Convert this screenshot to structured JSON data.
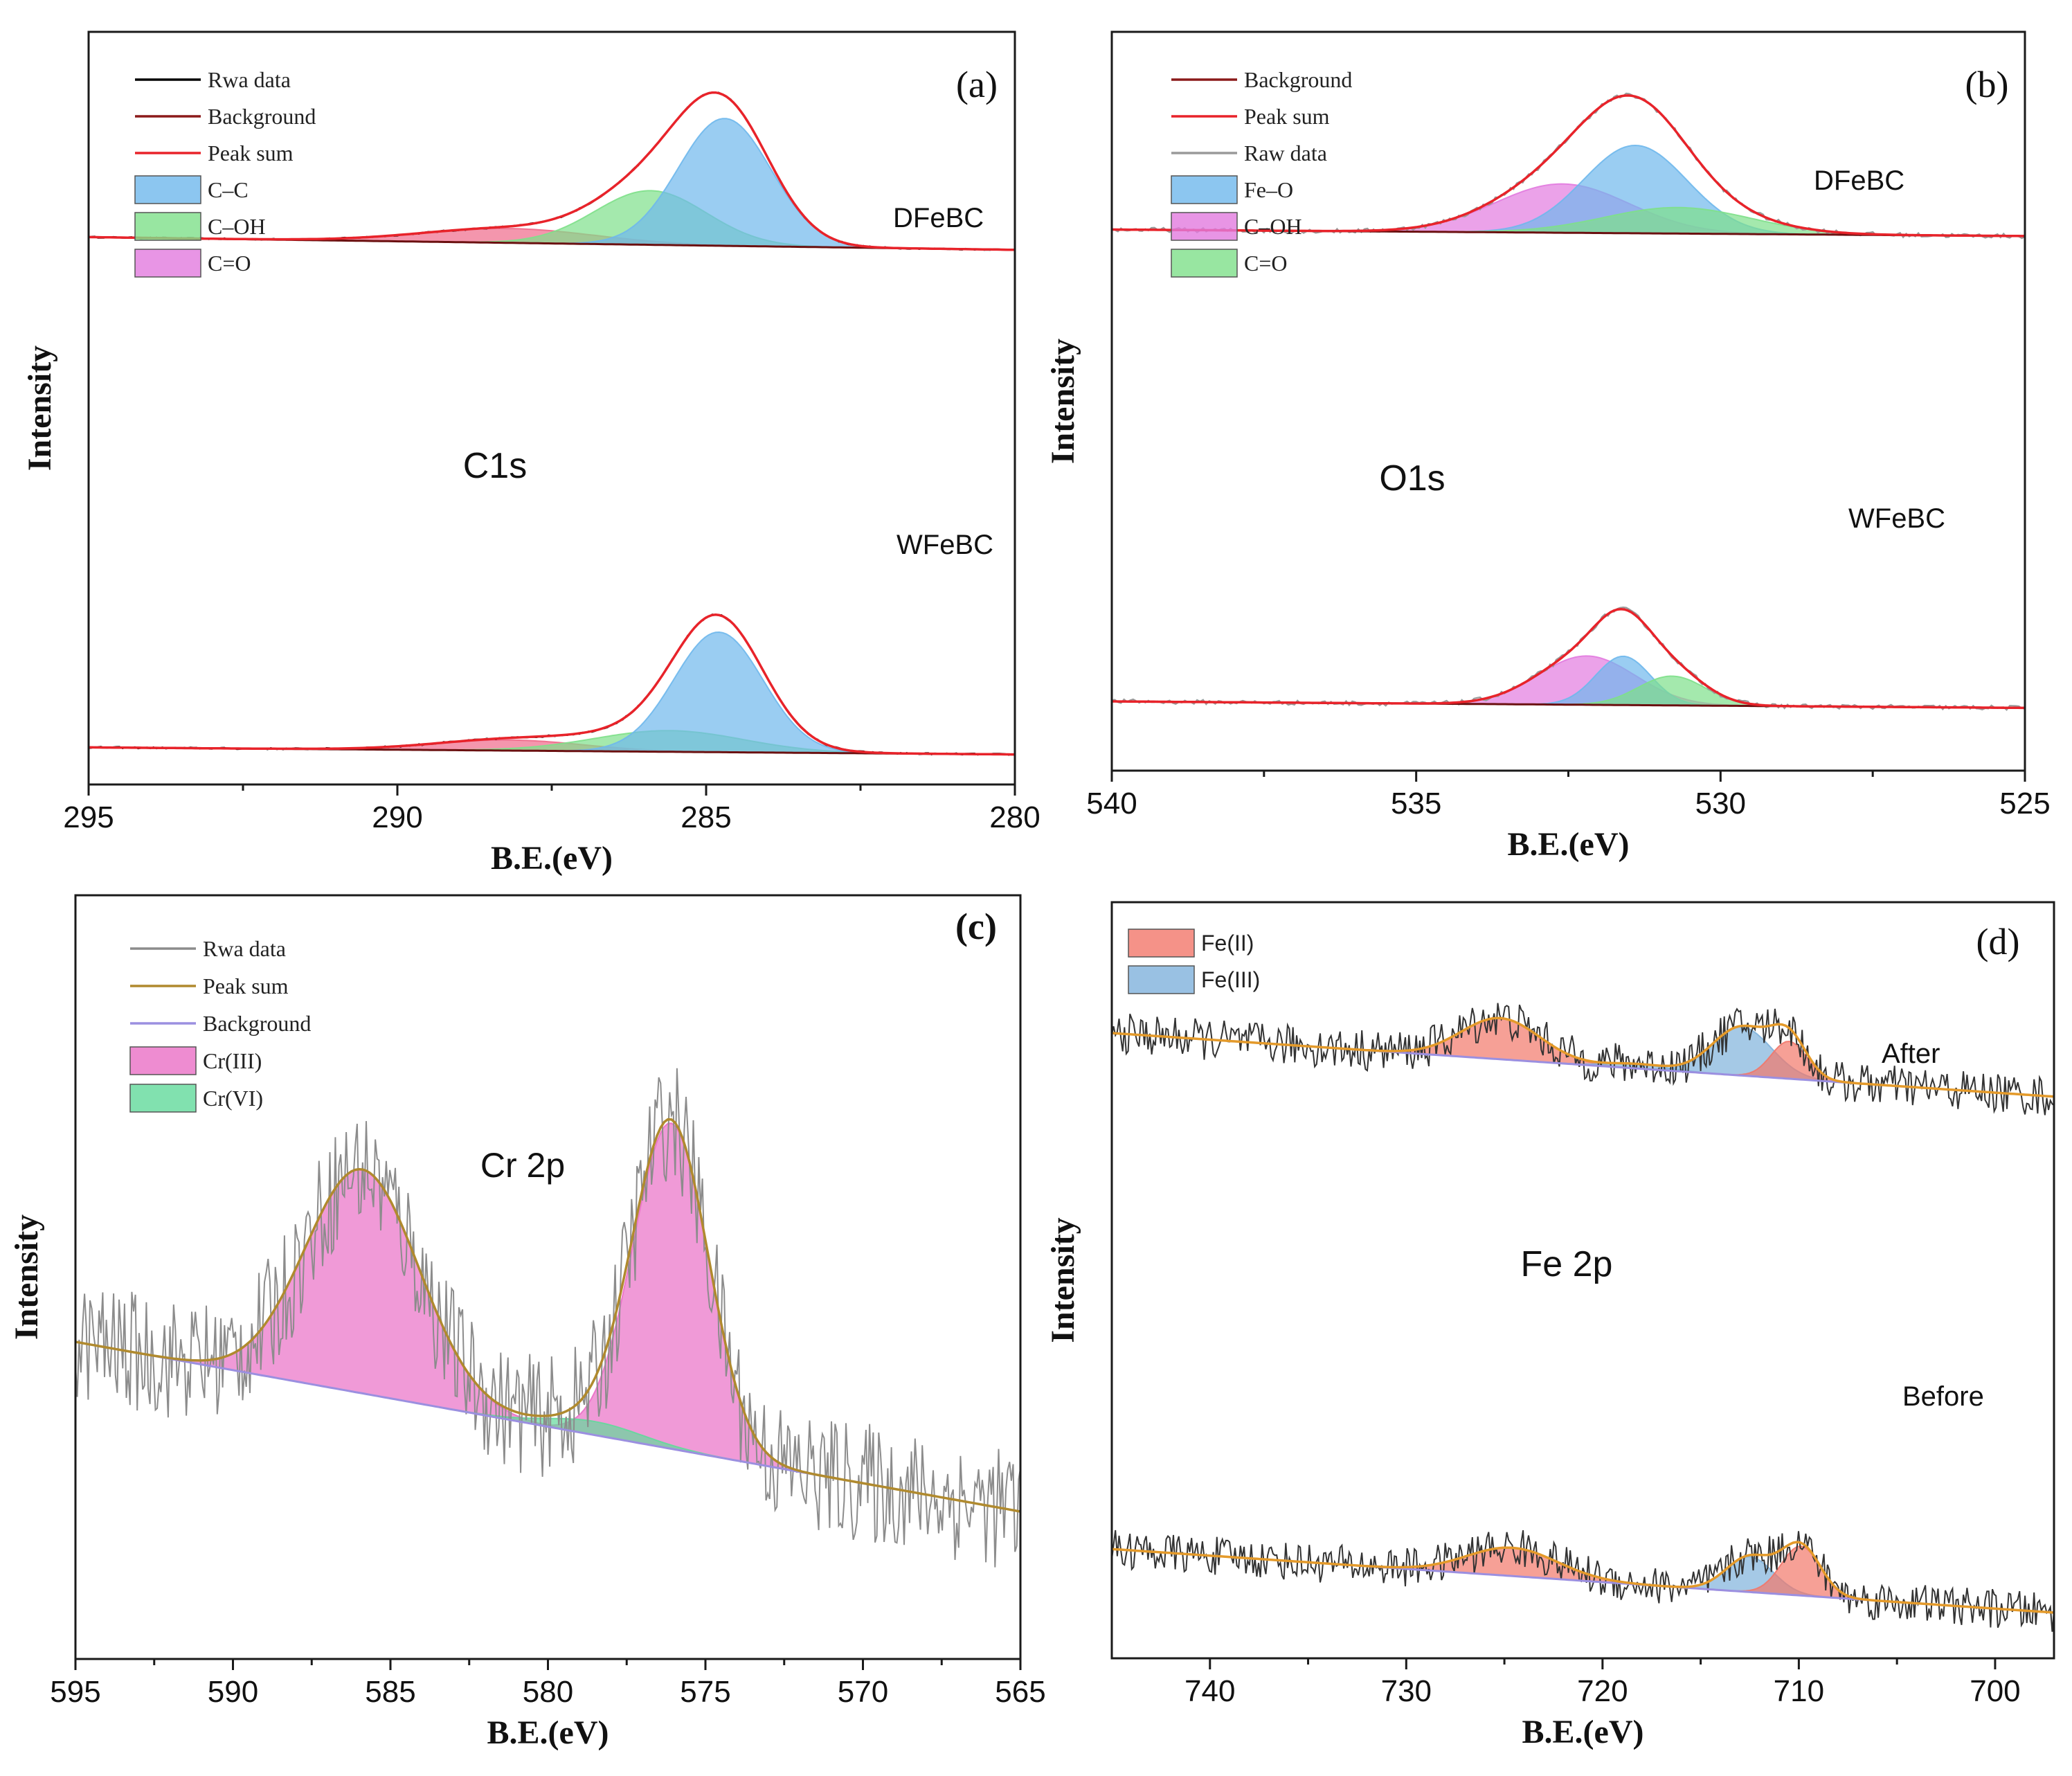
{
  "chart_data": [
    {
      "panel": "(a)",
      "type": "line",
      "title": "C1s",
      "xlabel": "B.E.(eV)",
      "ylabel": "Intensity",
      "xlim": [
        295,
        280
      ],
      "xticks": [
        295,
        290,
        285,
        280
      ],
      "legend": [
        {
          "label": "Rwa data",
          "kind": "line",
          "color": "#000000"
        },
        {
          "label": "Background",
          "kind": "line",
          "color": "#8b1a1a"
        },
        {
          "label": "Peak sum",
          "kind": "line",
          "color": "#e8232a"
        },
        {
          "label": "C–C",
          "kind": "fill",
          "color": "#6fb8ec"
        },
        {
          "label": "C–OH",
          "kind": "fill",
          "color": "#7ee08a"
        },
        {
          "label": "C=O",
          "kind": "fill",
          "color": "#e27adf"
        }
      ],
      "series": [
        {
          "name": "DFeBC",
          "label": "DFeBC",
          "baseline": [
            0.56,
            0.52
          ],
          "peaks": [
            {
              "component": "C=O",
              "center": 288.2,
              "height": 0.045,
              "width": 1.4,
              "color": "#f06a8a"
            },
            {
              "component": "C–OH",
              "center": 285.9,
              "height": 0.17,
              "width": 0.9,
              "color": "#7ee08a"
            },
            {
              "component": "C–C",
              "center": 284.7,
              "height": 0.4,
              "width": 0.75,
              "color": "#6fb8ec"
            }
          ]
        },
        {
          "name": "WFeBC",
          "label": "WFeBC",
          "baseline": [
            0.06,
            0.04
          ],
          "peaks": [
            {
              "component": "C=O",
              "center": 288.2,
              "height": 0.03,
              "width": 1.2,
              "color": "#f06a8a"
            },
            {
              "component": "C–OH",
              "center": 285.6,
              "height": 0.06,
              "width": 1.2,
              "color": "#7ee08a"
            },
            {
              "component": "C–C",
              "center": 284.8,
              "height": 0.34,
              "width": 0.72,
              "color": "#6fb8ec"
            }
          ]
        }
      ]
    },
    {
      "panel": "(b)",
      "type": "line",
      "title": "O1s",
      "xlabel": "B.E.(eV)",
      "ylabel": "Intensity",
      "xlim": [
        540,
        525
      ],
      "xticks": [
        540,
        535,
        530,
        525
      ],
      "legend": [
        {
          "label": "Background",
          "kind": "line",
          "color": "#8b1a1a"
        },
        {
          "label": "Peak sum",
          "kind": "line",
          "color": "#e8232a"
        },
        {
          "label": "Raw data",
          "kind": "line",
          "color": "#9a9a9a"
        },
        {
          "label": "Fe–O",
          "kind": "fill",
          "color": "#6fb8ec"
        },
        {
          "label": "C–OH",
          "kind": "fill",
          "color": "#e27adf"
        },
        {
          "label": "C=O",
          "kind": "fill",
          "color": "#7ee08a"
        }
      ],
      "series": [
        {
          "name": "DFeBC",
          "label": "DFeBC",
          "baseline": [
            0.55,
            0.53
          ],
          "peaks": [
            {
              "component": "C–OH",
              "center": 532.6,
              "height": 0.15,
              "width": 1.1,
              "color": "#e27adf"
            },
            {
              "component": "Fe–O",
              "center": 531.4,
              "height": 0.27,
              "width": 0.85,
              "color": "#6fb8ec"
            },
            {
              "component": "C=O",
              "center": 530.7,
              "height": 0.08,
              "width": 1.2,
              "color": "#7ee08a"
            }
          ]
        },
        {
          "name": "WFeBC",
          "label": "WFeBC",
          "baseline": [
            0.1,
            0.08
          ],
          "peaks": [
            {
              "component": "C–OH",
              "center": 532.2,
              "height": 0.15,
              "width": 0.8,
              "color": "#e27adf"
            },
            {
              "component": "Fe–O",
              "center": 531.6,
              "height": 0.15,
              "width": 0.45,
              "color": "#6fb8ec"
            },
            {
              "component": "C=O",
              "center": 530.8,
              "height": 0.09,
              "width": 0.55,
              "color": "#7ee08a"
            }
          ]
        }
      ]
    },
    {
      "panel": "(c)",
      "type": "line",
      "title": "Cr 2p",
      "xlabel": "B.E.(eV)",
      "ylabel": "Intensity",
      "xlim": [
        595,
        565
      ],
      "xticks": [
        595,
        590,
        585,
        580,
        575,
        570,
        565
      ],
      "legend": [
        {
          "label": "Rwa data",
          "kind": "line",
          "color": "#8c8c8c"
        },
        {
          "label": "Peak sum",
          "kind": "line",
          "color": "#b08a2e"
        },
        {
          "label": "Background",
          "kind": "line",
          "color": "#9b8fe0"
        },
        {
          "label": "Cr(III)",
          "kind": "fill",
          "color": "#ea6fc6"
        },
        {
          "label": "Cr(VI)",
          "kind": "fill",
          "color": "#62d99b"
        }
      ],
      "series": [
        {
          "name": "Cr 2p",
          "baseline": [
            0.4,
            0.15
          ],
          "peaks": [
            {
              "component": "Cr(III)",
              "center": 585.9,
              "height": 0.33,
              "width": 1.8,
              "color": "#ea6fc6"
            },
            {
              "component": "Cr(III)",
              "center": 576.1,
              "height": 0.48,
              "width": 1.2,
              "color": "#ea6fc6"
            },
            {
              "component": "Cr(VI)",
              "center": 578.5,
              "height": 0.02,
              "width": 1.5,
              "color": "#62d99b"
            }
          ]
        }
      ]
    },
    {
      "panel": "(d)",
      "type": "line",
      "title": "Fe 2p",
      "xlabel": "B.E.(eV)",
      "ylabel": "Intensity",
      "xlim": [
        745,
        697
      ],
      "xticks": [
        740,
        730,
        720,
        710,
        700
      ],
      "legend": [
        {
          "label": "Fe(II)",
          "kind": "fill",
          "color": "#f2776a"
        },
        {
          "label": "Fe(III)",
          "kind": "fill",
          "color": "#7fb2dc"
        }
      ],
      "series": [
        {
          "name": "After",
          "label": "After",
          "baseline": [
            0.7,
            0.53
          ],
          "peaks": [
            {
              "component": "Fe(II)",
              "center": 725.2,
              "height": 0.11,
              "width": 2.0,
              "color": "#f2776a"
            },
            {
              "component": "Fe(III)",
              "center": 718.2,
              "height": 0.012,
              "width": 1.5,
              "color": "#7fb2dc"
            },
            {
              "component": "Fe(III)",
              "center": 712.9,
              "height": 0.13,
              "width": 1.5,
              "color": "#7fb2dc"
            },
            {
              "component": "Fe(II)",
              "center": 710.5,
              "height": 0.1,
              "width": 0.9,
              "color": "#f2776a"
            }
          ]
        },
        {
          "name": "Before",
          "label": "Before",
          "baseline": [
            0.28,
            0.1
          ],
          "peaks": [
            {
              "component": "Fe(II)",
              "center": 724.6,
              "height": 0.08,
              "width": 2.3,
              "color": "#f2776a"
            },
            {
              "component": "Fe(III)",
              "center": 712.5,
              "height": 0.1,
              "width": 1.2,
              "color": "#7fb2dc"
            },
            {
              "component": "Fe(II)",
              "center": 709.9,
              "height": 0.14,
              "width": 1.0,
              "color": "#f2776a"
            }
          ]
        }
      ]
    }
  ]
}
